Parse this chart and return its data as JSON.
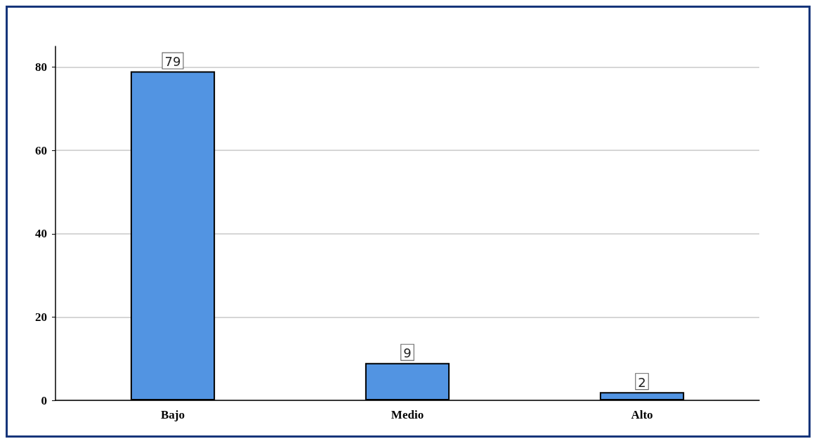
{
  "chart_data": {
    "type": "bar",
    "categories": [
      "Bajo",
      "Medio",
      "Alto"
    ],
    "values": [
      79,
      9,
      2
    ],
    "color": "#5294e2",
    "ylim": [
      0,
      85
    ],
    "yticks": [
      0,
      20,
      40,
      60,
      80
    ],
    "grid": "y",
    "data_labels": true
  }
}
